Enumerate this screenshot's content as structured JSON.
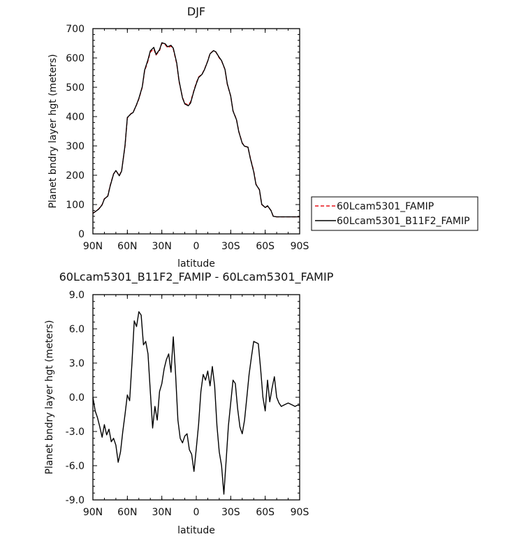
{
  "chart_data": [
    {
      "type": "line",
      "title": "DJF",
      "xlabel": "latitude",
      "ylabel": "Planet bndry layer hgt (meters)",
      "xlim": [
        90,
        -90
      ],
      "ylim": [
        0,
        700
      ],
      "x_ticks": [
        90,
        60,
        30,
        0,
        -30,
        -60,
        -90
      ],
      "x_tick_labels": [
        "90N",
        "60N",
        "30N",
        "0",
        "30S",
        "60S",
        "90S"
      ],
      "y_ticks": [
        0,
        100,
        200,
        300,
        400,
        500,
        600,
        700
      ],
      "y_tick_labels": [
        "0",
        "100",
        "200",
        "300",
        "400",
        "500",
        "600",
        "700"
      ],
      "legend_position": "right, outside plot",
      "series": [
        {
          "name": "60Lcam5301_FAMIP",
          "color": "#e8141a",
          "dash": "dashed",
          "x": [
            90,
            85,
            82,
            80,
            77,
            75,
            72,
            70,
            67,
            65,
            62,
            60,
            57,
            55,
            52,
            50,
            47,
            45,
            42,
            40,
            37,
            35,
            32,
            30,
            27,
            25,
            22,
            20,
            17,
            15,
            12,
            10,
            7,
            5,
            2,
            0,
            -2,
            -5,
            -7,
            -10,
            -12,
            -15,
            -17,
            -20,
            -22,
            -25,
            -27,
            -30,
            -32,
            -35,
            -37,
            -40,
            -42,
            -45,
            -47,
            -50,
            -52,
            -55,
            -57,
            -60,
            -62,
            -65,
            -67,
            -70,
            -72,
            -75,
            -77,
            -80,
            -82,
            -85,
            -87,
            -90
          ],
          "values": [
            70,
            85,
            100,
            120,
            130,
            165,
            205,
            215,
            200,
            215,
            300,
            395,
            410,
            415,
            440,
            460,
            500,
            555,
            590,
            620,
            630,
            610,
            625,
            650,
            645,
            635,
            640,
            630,
            580,
            520,
            465,
            445,
            440,
            450,
            490,
            515,
            535,
            545,
            560,
            590,
            615,
            625,
            620,
            600,
            590,
            560,
            510,
            470,
            420,
            390,
            350,
            310,
            300,
            295,
            260,
            215,
            170,
            150,
            100,
            90,
            95,
            80,
            60,
            58,
            58,
            58,
            58,
            58,
            58,
            58,
            58,
            58
          ]
        },
        {
          "name": "60Lcam5301_B11F2_FAMIP",
          "color": "#000000",
          "dash": "solid",
          "x": [
            90,
            85,
            82,
            80,
            77,
            75,
            72,
            70,
            67,
            65,
            62,
            60,
            57,
            55,
            52,
            50,
            47,
            45,
            42,
            40,
            37,
            35,
            32,
            30,
            27,
            25,
            22,
            20,
            17,
            15,
            12,
            10,
            7,
            5,
            2,
            0,
            -2,
            -5,
            -7,
            -10,
            -12,
            -15,
            -17,
            -20,
            -22,
            -25,
            -27,
            -30,
            -32,
            -35,
            -37,
            -40,
            -42,
            -45,
            -47,
            -50,
            -52,
            -55,
            -57,
            -60,
            -62,
            -65,
            -67,
            -70,
            -72,
            -75,
            -77,
            -80,
            -82,
            -85,
            -87,
            -90
          ],
          "values": [
            70,
            84,
            99,
            119,
            129,
            163,
            204,
            216,
            198,
            214,
            302,
            397,
            409,
            414,
            441,
            462,
            502,
            558,
            594,
            624,
            636,
            612,
            628,
            652,
            648,
            638,
            643,
            633,
            583,
            523,
            463,
            443,
            437,
            446,
            488,
            512,
            533,
            544,
            559,
            589,
            614,
            625,
            621,
            602,
            591,
            561,
            512,
            470,
            419,
            389,
            349,
            309,
            299,
            296,
            258,
            212,
            168,
            151,
            101,
            90,
            96,
            80,
            60,
            58,
            58,
            58,
            58,
            58,
            58,
            58,
            58,
            58
          ]
        }
      ]
    },
    {
      "type": "line",
      "title": "60Lcam5301_B11F2_FAMIP - 60Lcam5301_FAMIP",
      "xlabel": "latitude",
      "ylabel": "Planet bndry layer hgt (meters)",
      "xlim": [
        90,
        -90
      ],
      "ylim": [
        -9,
        9
      ],
      "x_ticks": [
        90,
        60,
        30,
        0,
        -30,
        -60,
        -90
      ],
      "x_tick_labels": [
        "90N",
        "60N",
        "30N",
        "0",
        "30S",
        "60S",
        "90S"
      ],
      "y_ticks": [
        -9,
        -6,
        -3,
        0,
        3,
        6,
        9
      ],
      "y_tick_labels": [
        "-9.0",
        "-6.0",
        "-3.0",
        "0.0",
        "3.0",
        "6.0",
        "9.0"
      ],
      "series": [
        {
          "color": "#000000",
          "dash": "solid",
          "x": [
            90,
            88,
            86,
            84,
            82,
            80,
            78,
            76,
            74,
            72,
            70,
            68,
            66,
            64,
            62,
            60,
            58,
            56,
            54,
            52,
            50,
            48,
            46,
            44,
            42,
            40,
            38,
            36,
            34,
            32,
            30,
            28,
            26,
            24,
            22,
            20,
            18,
            16,
            14,
            12,
            10,
            8,
            6,
            4,
            2,
            0,
            -2,
            -4,
            -6,
            -8,
            -10,
            -12,
            -14,
            -16,
            -18,
            -20,
            -22,
            -24,
            -26,
            -28,
            -30,
            -32,
            -34,
            -36,
            -38,
            -40,
            -42,
            -44,
            -46,
            -48,
            -50,
            -52,
            -54,
            -56,
            -58,
            -60,
            -62,
            -64,
            -66,
            -68,
            -70,
            -72,
            -74,
            -76,
            -78,
            -80,
            -82,
            -84,
            -86,
            -88,
            -90
          ],
          "values": [
            0,
            -1.2,
            -1.8,
            -2.6,
            -3.5,
            -2.4,
            -3.3,
            -2.8,
            -3.9,
            -3.6,
            -4.2,
            -5.7,
            -4.8,
            -3.0,
            -1.5,
            0.2,
            -0.3,
            3.0,
            6.7,
            6.2,
            7.5,
            7.2,
            4.6,
            4.9,
            3.8,
            0.5,
            -2.7,
            -0.8,
            -2.0,
            0.5,
            1.2,
            2.5,
            3.3,
            3.8,
            2.2,
            5.3,
            2.0,
            -2.0,
            -3.6,
            -4.0,
            -3.4,
            -3.2,
            -4.6,
            -5.0,
            -6.5,
            -4.5,
            -2.4,
            0.5,
            2.0,
            1.5,
            2.3,
            1.0,
            2.7,
            1.0,
            -2.5,
            -4.8,
            -6.0,
            -8.5,
            -5.5,
            -2.5,
            -0.5,
            1.5,
            1.2,
            -1.0,
            -2.6,
            -3.2,
            -2.0,
            0.0,
            2.0,
            3.5,
            4.9,
            4.8,
            4.7,
            2.5,
            0.0,
            -1.2,
            1.5,
            -0.4,
            0.8,
            1.8,
            0.0,
            -0.5,
            -0.8,
            -0.7,
            -0.6,
            -0.5,
            -0.6,
            -0.7,
            -0.8,
            -0.7,
            -0.7
          ]
        }
      ]
    }
  ]
}
